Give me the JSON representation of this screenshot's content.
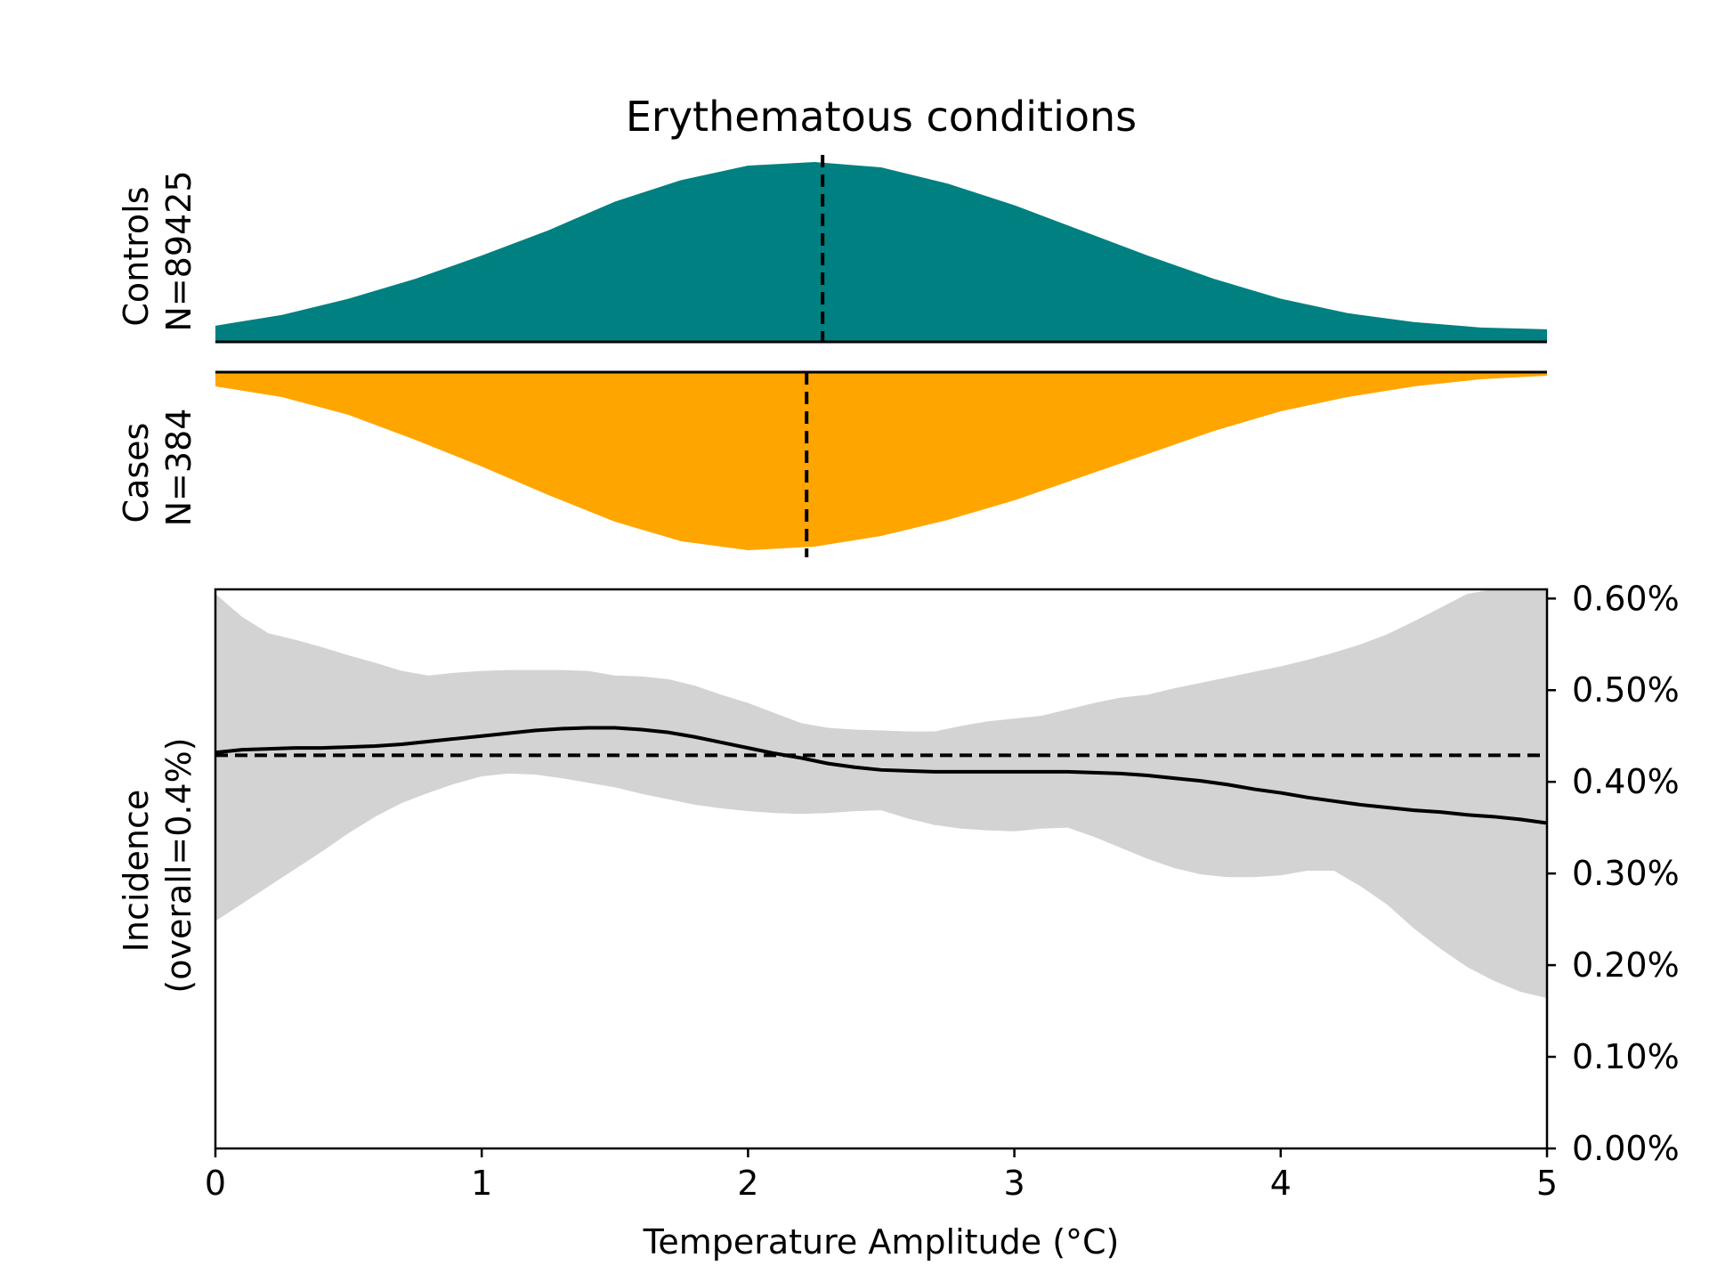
{
  "chart_data": {
    "type": "area",
    "title": "Erythematous conditions",
    "colors": {
      "controls": "#008080",
      "cases": "#FFA500",
      "ci_band": "#D3D3D3",
      "line": "#000000"
    },
    "distributions": {
      "x_range": [
        0,
        5
      ],
      "controls": {
        "label_line1": "Controls",
        "label_line2": "N=89425",
        "median": 2.28,
        "x": [
          0,
          0.25,
          0.5,
          0.75,
          1.0,
          1.25,
          1.5,
          1.75,
          2.0,
          2.25,
          2.5,
          2.75,
          3.0,
          3.25,
          3.5,
          3.75,
          4.0,
          4.25,
          4.5,
          4.75,
          5.0
        ],
        "density": [
          0.09,
          0.15,
          0.24,
          0.35,
          0.48,
          0.62,
          0.78,
          0.9,
          0.98,
          1.0,
          0.97,
          0.88,
          0.76,
          0.62,
          0.48,
          0.35,
          0.24,
          0.16,
          0.11,
          0.08,
          0.07
        ]
      },
      "cases": {
        "label_line1": "Cases",
        "label_line2": "N=384",
        "median": 2.22,
        "x": [
          0,
          0.25,
          0.5,
          0.75,
          1.0,
          1.25,
          1.5,
          1.75,
          2.0,
          2.25,
          2.5,
          2.75,
          3.0,
          3.25,
          3.5,
          3.75,
          4.0,
          4.25,
          4.5,
          4.75,
          5.0
        ],
        "density": [
          0.08,
          0.14,
          0.24,
          0.38,
          0.53,
          0.69,
          0.84,
          0.95,
          1.0,
          0.98,
          0.92,
          0.83,
          0.72,
          0.59,
          0.46,
          0.33,
          0.22,
          0.14,
          0.08,
          0.04,
          0.02
        ]
      }
    },
    "incidence": {
      "xlabel": "Temperature Amplitude (°C)",
      "ylabel_line1": "Incidence",
      "ylabel_line2": "(overall=0.4%)",
      "xlim": [
        0,
        5
      ],
      "ylim": [
        0,
        0.0061
      ],
      "x_ticks": [
        0,
        1,
        2,
        3,
        4,
        5
      ],
      "x_tick_labels": [
        "0",
        "1",
        "2",
        "3",
        "4",
        "5"
      ],
      "y_ticks": [
        0,
        0.001,
        0.002,
        0.003,
        0.004,
        0.005,
        0.006
      ],
      "y_tick_labels": [
        "0.00%",
        "0.10%",
        "0.20%",
        "0.30%",
        "0.40%",
        "0.50%",
        "0.60%"
      ],
      "overall_rate": 0.00429,
      "x": [
        0,
        0.1,
        0.2,
        0.3,
        0.4,
        0.5,
        0.6,
        0.7,
        0.8,
        0.9,
        1.0,
        1.1,
        1.2,
        1.3,
        1.4,
        1.5,
        1.6,
        1.7,
        1.8,
        1.9,
        2.0,
        2.1,
        2.2,
        2.3,
        2.4,
        2.5,
        2.6,
        2.7,
        2.8,
        2.9,
        3.0,
        3.1,
        3.2,
        3.3,
        3.4,
        3.5,
        3.6,
        3.7,
        3.8,
        3.9,
        4.0,
        4.1,
        4.2,
        4.3,
        4.4,
        4.5,
        4.6,
        4.7,
        4.8,
        4.9,
        5.0
      ],
      "rate": [
        0.00432,
        0.00435,
        0.00436,
        0.00437,
        0.00437,
        0.00438,
        0.00439,
        0.00441,
        0.00444,
        0.00447,
        0.0045,
        0.00453,
        0.00456,
        0.00458,
        0.00459,
        0.00459,
        0.00457,
        0.00454,
        0.00449,
        0.00443,
        0.00437,
        0.00431,
        0.00426,
        0.0042,
        0.00416,
        0.00413,
        0.00412,
        0.00411,
        0.00411,
        0.00411,
        0.00411,
        0.00411,
        0.00411,
        0.0041,
        0.00409,
        0.00407,
        0.00404,
        0.00401,
        0.00397,
        0.00392,
        0.00388,
        0.00383,
        0.00379,
        0.00375,
        0.00372,
        0.00369,
        0.00367,
        0.00364,
        0.00362,
        0.00359,
        0.00355
      ],
      "ci_upper": [
        0.00605,
        0.0058,
        0.00562,
        0.00555,
        0.00547,
        0.00538,
        0.0053,
        0.00521,
        0.00516,
        0.00519,
        0.00521,
        0.00522,
        0.00522,
        0.00522,
        0.00521,
        0.00516,
        0.00515,
        0.00512,
        0.00505,
        0.00495,
        0.00486,
        0.00475,
        0.00464,
        0.00459,
        0.00457,
        0.00456,
        0.00455,
        0.00455,
        0.00461,
        0.00466,
        0.00469,
        0.00472,
        0.00479,
        0.00486,
        0.00492,
        0.00495,
        0.00502,
        0.00508,
        0.00514,
        0.0052,
        0.00526,
        0.00533,
        0.00541,
        0.0055,
        0.00561,
        0.00575,
        0.0059,
        0.00605,
        0.00615,
        0.00622,
        0.00627
      ],
      "ci_lower": [
        0.00248,
        0.00267,
        0.00286,
        0.00305,
        0.00324,
        0.00344,
        0.00362,
        0.00377,
        0.00388,
        0.00398,
        0.00406,
        0.00409,
        0.00408,
        0.00404,
        0.00399,
        0.00394,
        0.00387,
        0.00381,
        0.00375,
        0.00371,
        0.00368,
        0.00366,
        0.00365,
        0.00366,
        0.00368,
        0.00369,
        0.0036,
        0.00353,
        0.00349,
        0.00347,
        0.00346,
        0.00349,
        0.0035,
        0.0034,
        0.00328,
        0.00316,
        0.00306,
        0.00299,
        0.00296,
        0.00296,
        0.00298,
        0.00303,
        0.00303,
        0.00286,
        0.00266,
        0.0024,
        0.00218,
        0.00198,
        0.00183,
        0.00171,
        0.00164
      ]
    }
  }
}
